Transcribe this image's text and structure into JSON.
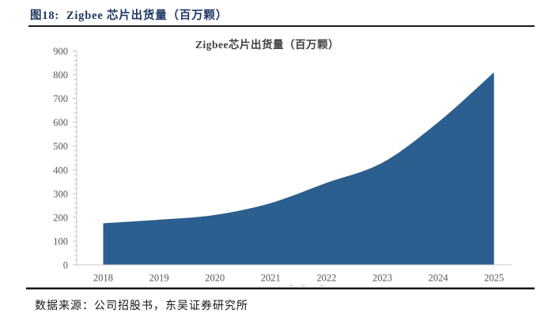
{
  "header": {
    "caption": "图18:  Zigbee 芯片出货量（百万颗）"
  },
  "chart_data": {
    "type": "area",
    "title": "Zigbee芯片出货量（百万颗）",
    "categories": [
      "2018",
      "2019",
      "2020",
      "2021",
      "2022",
      "2023",
      "2024",
      "2025"
    ],
    "series": [
      {
        "name": "Zigbee芯片出货量",
        "values": [
          175,
          190,
          210,
          260,
          345,
          430,
          600,
          810
        ]
      }
    ],
    "xlabel": "",
    "ylabel": "",
    "ylim": [
      0,
      900
    ],
    "y_tick_step": 100,
    "y_minor_tick_step": 20,
    "y_tick_labels": [
      "0",
      "100",
      "200",
      "300",
      "400",
      "500",
      "600",
      "700",
      "800",
      "900"
    ],
    "grid": false,
    "legend_position": "none",
    "area_color": "#2B5F8F",
    "axis_color": "#C9C9C9",
    "tick_color": "#BDBDBD",
    "label_color": "#575757",
    "title_color": "#3f3f3f"
  },
  "footer": {
    "source": "数据来源：公司招股书，东吴证券研究所"
  }
}
